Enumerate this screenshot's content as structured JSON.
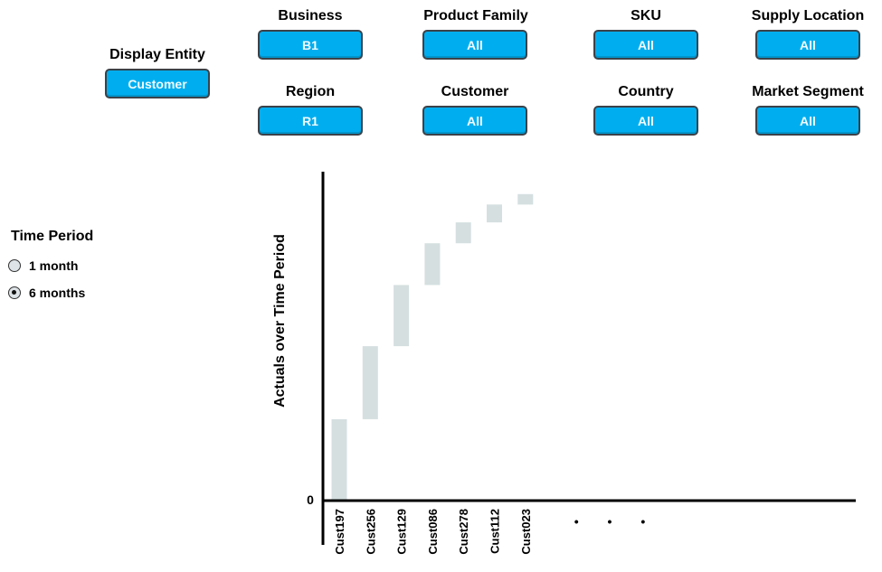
{
  "display_entity": {
    "label": "Display Entity",
    "value": "Customer"
  },
  "filters": {
    "business": {
      "label": "Business",
      "value": "B1"
    },
    "product_family": {
      "label": "Product Family",
      "value": "All"
    },
    "sku": {
      "label": "SKU",
      "value": "All"
    },
    "supply_location": {
      "label": "Supply Location",
      "value": "All"
    },
    "region": {
      "label": "Region",
      "value": "R1"
    },
    "customer": {
      "label": "Customer",
      "value": "All"
    },
    "country": {
      "label": "Country",
      "value": "All"
    },
    "market_segment": {
      "label": "Market Segment",
      "value": "All"
    }
  },
  "time_period": {
    "title": "Time Period",
    "options": [
      {
        "label": "1 month",
        "selected": false
      },
      {
        "label": "6 months",
        "selected": true
      }
    ]
  },
  "colors": {
    "button": "#00aeef",
    "bar": "#d5dfe0",
    "axis": "#000000"
  },
  "chart_data": {
    "type": "bar",
    "subtype": "waterfall",
    "ylabel": "Actuals over Time Period",
    "y_tick_labels": [
      "0"
    ],
    "categories": [
      "Cust197",
      "Cust256",
      "Cust129",
      "Cust086",
      "Cust278",
      "Cust112",
      "Cust023"
    ],
    "values": [
      27,
      24.5,
      20.5,
      14,
      7,
      6,
      3.5
    ],
    "ylim": [
      0,
      110
    ],
    "continuation_marker": "• • •",
    "grid": false,
    "legend": "none"
  }
}
